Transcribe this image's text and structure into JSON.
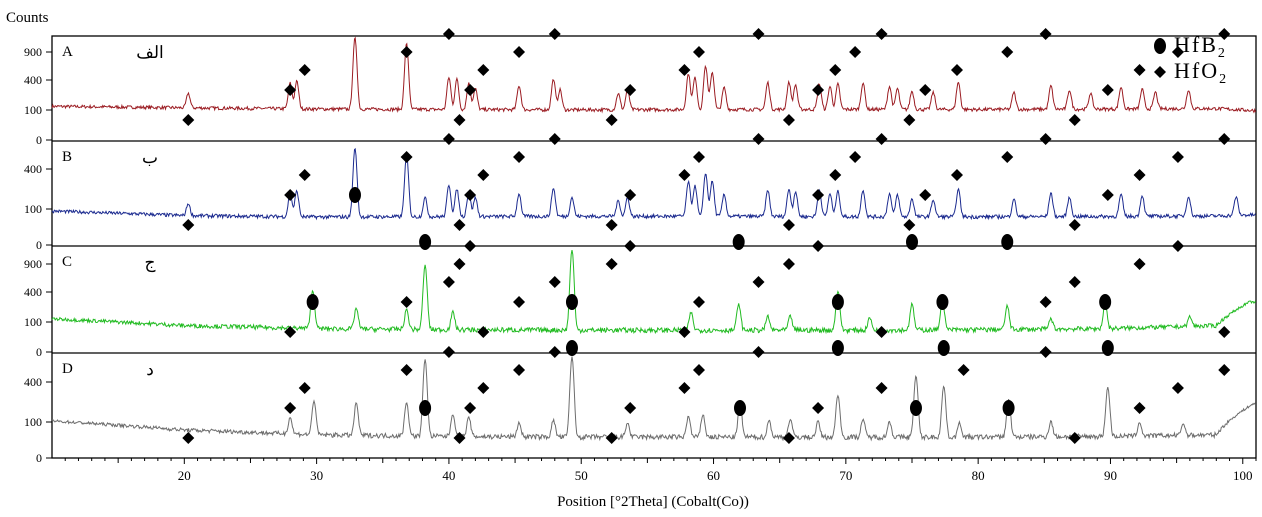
{
  "chart_data": {
    "type": "line",
    "title": "",
    "ylabel": "Counts",
    "xlabel": "Position [°2Theta] (Cobalt(Co))",
    "xlim": [
      10,
      101
    ],
    "x_ticks": [
      20,
      30,
      40,
      50,
      60,
      70,
      80,
      90,
      100
    ],
    "legend": {
      "placement": "top-right",
      "entries": [
        {
          "marker": "circle",
          "label": "HfB",
          "subscript": "2"
        },
        {
          "marker": "diamond",
          "label": "HfO",
          "subscript": "2"
        }
      ]
    },
    "panels": [
      {
        "letter": "A",
        "arabic": "الف",
        "color": "#9b1c22",
        "y_ticks": [
          "900",
          "400",
          "100",
          "0"
        ],
        "baseline": [
          [
            10,
            118
          ],
          [
            20,
            108
          ],
          [
            30,
            100
          ],
          [
            40,
            97
          ],
          [
            50,
            95
          ],
          [
            60,
            97
          ],
          [
            70,
            98
          ],
          [
            80,
            97
          ],
          [
            90,
            100
          ],
          [
            98,
            103
          ],
          [
            101,
            90
          ]
        ],
        "peaks": [
          [
            20.3,
            120
          ],
          [
            28.0,
            240
          ],
          [
            28.5,
            260
          ],
          [
            32.9,
            1000
          ],
          [
            36.8,
            880
          ],
          [
            40.0,
            310
          ],
          [
            40.6,
            290
          ],
          [
            41.5,
            240
          ],
          [
            42.0,
            180
          ],
          [
            45.3,
            210
          ],
          [
            47.9,
            290
          ],
          [
            48.4,
            170
          ],
          [
            52.8,
            130
          ],
          [
            53.5,
            170
          ],
          [
            58.1,
            360
          ],
          [
            58.6,
            310
          ],
          [
            59.4,
            470
          ],
          [
            59.9,
            380
          ],
          [
            60.8,
            190
          ],
          [
            64.1,
            250
          ],
          [
            65.7,
            250
          ],
          [
            66.2,
            220
          ],
          [
            68.0,
            230
          ],
          [
            68.8,
            200
          ],
          [
            69.4,
            230
          ],
          [
            71.3,
            240
          ],
          [
            73.3,
            200
          ],
          [
            73.9,
            180
          ],
          [
            75.0,
            150
          ],
          [
            76.6,
            140
          ],
          [
            78.5,
            250
          ],
          [
            82.7,
            140
          ],
          [
            85.5,
            210
          ],
          [
            86.9,
            160
          ],
          [
            88.5,
            130
          ],
          [
            90.8,
            190
          ],
          [
            92.4,
            170
          ],
          [
            93.4,
            140
          ],
          [
            95.9,
            160
          ]
        ],
        "diamonds": [
          20.3,
          28.0,
          29.1,
          36.8,
          40.0,
          40.8,
          41.6,
          42.6,
          45.3,
          48.0,
          52.3,
          53.7,
          57.8,
          58.9,
          63.4,
          65.7,
          67.9,
          69.2,
          70.7,
          72.7,
          74.8,
          76.0,
          78.4,
          82.2,
          85.1,
          87.3,
          89.8,
          92.2,
          95.1,
          98.6
        ],
        "circles": []
      },
      {
        "letter": "B",
        "arabic": "ب",
        "color": "#1b2a8f",
        "y_ticks": [
          "400",
          "100",
          "0"
        ],
        "baseline": [
          [
            10,
            120
          ],
          [
            20,
            90
          ],
          [
            30,
            82
          ],
          [
            40,
            84
          ],
          [
            50,
            86
          ],
          [
            60,
            86
          ],
          [
            70,
            84
          ],
          [
            80,
            83
          ],
          [
            90,
            85
          ],
          [
            98,
            88
          ],
          [
            101,
            95
          ]
        ],
        "peaks": [
          [
            20.3,
            90
          ],
          [
            28.0,
            200
          ],
          [
            28.5,
            220
          ],
          [
            32.9,
            900
          ],
          [
            36.8,
            760
          ],
          [
            38.2,
            150
          ],
          [
            40.0,
            290
          ],
          [
            40.6,
            240
          ],
          [
            41.5,
            200
          ],
          [
            42.0,
            150
          ],
          [
            45.3,
            190
          ],
          [
            47.9,
            250
          ],
          [
            49.3,
            150
          ],
          [
            52.8,
            120
          ],
          [
            53.5,
            150
          ],
          [
            58.1,
            330
          ],
          [
            58.6,
            280
          ],
          [
            59.4,
            450
          ],
          [
            59.9,
            340
          ],
          [
            60.8,
            180
          ],
          [
            64.1,
            230
          ],
          [
            65.7,
            240
          ],
          [
            66.2,
            210
          ],
          [
            68.0,
            230
          ],
          [
            68.8,
            190
          ],
          [
            69.4,
            220
          ],
          [
            71.3,
            230
          ],
          [
            73.3,
            190
          ],
          [
            73.9,
            180
          ],
          [
            75.0,
            140
          ],
          [
            76.6,
            130
          ],
          [
            78.5,
            240
          ],
          [
            82.7,
            140
          ],
          [
            85.5,
            200
          ],
          [
            86.9,
            150
          ],
          [
            90.8,
            180
          ],
          [
            92.4,
            170
          ],
          [
            95.9,
            160
          ],
          [
            99.5,
            150
          ]
        ],
        "diamonds": [
          20.3,
          28.0,
          29.1,
          36.8,
          40.0,
          40.8,
          41.6,
          42.6,
          45.3,
          48.0,
          52.3,
          53.7,
          57.8,
          58.9,
          63.4,
          65.7,
          67.9,
          69.2,
          70.7,
          72.7,
          74.8,
          76.0,
          78.4,
          82.2,
          85.1,
          87.3,
          89.8,
          92.2,
          95.1,
          98.6
        ],
        "circles": [
          32.9
        ]
      },
      {
        "letter": "C",
        "arabic": "ج",
        "color": "#22bb22",
        "y_ticks": [
          "900",
          "400",
          "100",
          "0"
        ],
        "baseline": [
          [
            10,
            110
          ],
          [
            20,
            70
          ],
          [
            30,
            55
          ],
          [
            40,
            50
          ],
          [
            50,
            48
          ],
          [
            60,
            48
          ],
          [
            70,
            48
          ],
          [
            80,
            50
          ],
          [
            90,
            55
          ],
          [
            98,
            70
          ],
          [
            100.5,
            250
          ]
        ],
        "peaks": [
          [
            29.7,
            320
          ],
          [
            33.0,
            140
          ],
          [
            36.8,
            130
          ],
          [
            38.2,
            700
          ],
          [
            40.3,
            110
          ],
          [
            49.3,
            1000
          ],
          [
            58.3,
            110
          ],
          [
            61.9,
            180
          ],
          [
            64.1,
            80
          ],
          [
            65.8,
            80
          ],
          [
            69.4,
            320
          ],
          [
            71.8,
            70
          ],
          [
            75.0,
            180
          ],
          [
            77.3,
            220
          ],
          [
            82.2,
            160
          ],
          [
            85.5,
            60
          ],
          [
            89.6,
            180
          ],
          [
            96.0,
            60
          ]
        ],
        "diamonds": [
          28.0,
          36.8,
          40.0,
          40.8,
          41.6,
          42.6,
          45.3,
          48.0,
          52.3,
          53.7,
          57.8,
          58.9,
          63.4,
          65.7,
          67.9,
          72.7,
          85.1,
          87.3,
          92.2,
          95.1,
          98.6
        ],
        "circles": [
          29.7,
          38.2,
          49.3,
          61.9,
          69.4,
          75.0,
          77.3,
          82.2,
          89.6
        ]
      },
      {
        "letter": "D",
        "arabic": "د",
        "color": "#6d6d6d",
        "y_ticks": [
          "400",
          "100",
          "0"
        ],
        "baseline": [
          [
            10,
            140
          ],
          [
            20,
            80
          ],
          [
            30,
            55
          ],
          [
            40,
            48
          ],
          [
            50,
            45
          ],
          [
            60,
            45
          ],
          [
            70,
            45
          ],
          [
            80,
            45
          ],
          [
            90,
            48
          ],
          [
            98,
            55
          ],
          [
            100.8,
            300
          ]
        ],
        "peaks": [
          [
            28.0,
            110
          ],
          [
            29.8,
            280
          ],
          [
            33.0,
            260
          ],
          [
            36.8,
            270
          ],
          [
            38.2,
            950
          ],
          [
            40.3,
            150
          ],
          [
            41.5,
            120
          ],
          [
            45.3,
            80
          ],
          [
            47.9,
            100
          ],
          [
            49.3,
            1000
          ],
          [
            53.5,
            80
          ],
          [
            58.1,
            130
          ],
          [
            59.2,
            150
          ],
          [
            62.0,
            250
          ],
          [
            64.2,
            100
          ],
          [
            65.8,
            110
          ],
          [
            67.9,
            90
          ],
          [
            69.4,
            360
          ],
          [
            71.3,
            110
          ],
          [
            73.3,
            90
          ],
          [
            75.3,
            640
          ],
          [
            77.4,
            480
          ],
          [
            78.6,
            80
          ],
          [
            82.3,
            300
          ],
          [
            85.5,
            90
          ],
          [
            89.8,
            460
          ],
          [
            92.2,
            80
          ],
          [
            95.5,
            70
          ]
        ],
        "diamonds": [
          20.3,
          28.0,
          29.1,
          36.8,
          40.0,
          40.8,
          41.6,
          42.6,
          45.3,
          48.0,
          52.3,
          53.7,
          57.8,
          58.9,
          63.4,
          65.7,
          67.9,
          72.7,
          78.9,
          85.1,
          87.3,
          92.2,
          95.1,
          98.6
        ],
        "circles": [
          38.2,
          49.3,
          62.0,
          69.4,
          75.3,
          77.4,
          82.3,
          89.8
        ]
      }
    ]
  }
}
